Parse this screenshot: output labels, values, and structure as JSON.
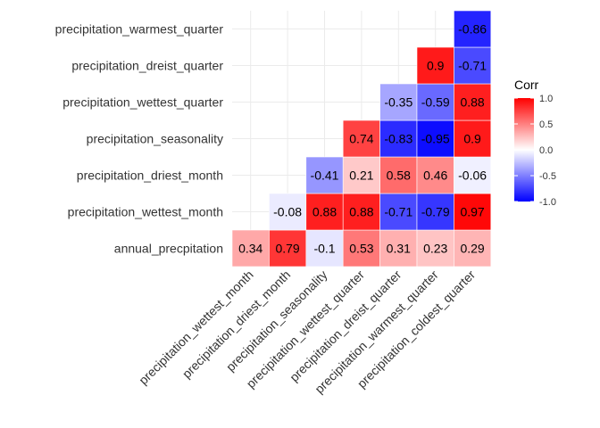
{
  "chart_data": {
    "type": "heatmap",
    "subtype": "lower-triangle correlation matrix",
    "x_labels": [
      "precipitation_wettest_month",
      "precipitation_driest_month",
      "precipitation_seasonality",
      "precipitation_wettest_quarter",
      "precipitation_dreist_quarter",
      "precipitation_warmest_quarter",
      "precipitation_coldest_quarter"
    ],
    "y_labels": [
      "annual_precpitation",
      "precipitation_wettest_month",
      "precipitation_driest_month",
      "precipitation_seasonality",
      "precipitation_wettest_quarter",
      "precipitation_dreist_quarter",
      "precipitation_warmest_quarter"
    ],
    "values": [
      [
        0.34,
        0.79,
        -0.1,
        0.53,
        0.31,
        0.23,
        0.29
      ],
      [
        null,
        -0.08,
        0.88,
        0.88,
        -0.71,
        -0.79,
        0.97
      ],
      [
        null,
        null,
        -0.41,
        0.21,
        0.58,
        0.46,
        -0.06
      ],
      [
        null,
        null,
        null,
        0.74,
        -0.83,
        -0.95,
        0.9
      ],
      [
        null,
        null,
        null,
        null,
        -0.35,
        -0.59,
        0.88
      ],
      [
        null,
        null,
        null,
        null,
        null,
        0.9,
        -0.71
      ],
      [
        null,
        null,
        null,
        null,
        null,
        null,
        -0.86
      ]
    ],
    "value_range": [
      -1,
      1
    ],
    "colors": {
      "low": "#0000FF",
      "mid": "#FFFFFF",
      "high": "#FF0000"
    },
    "legend": {
      "title": "Corr",
      "ticks": [
        "1.0",
        "0.5",
        "0.0",
        "-0.5",
        "-1.0"
      ],
      "placement": "right"
    },
    "grid": true
  }
}
